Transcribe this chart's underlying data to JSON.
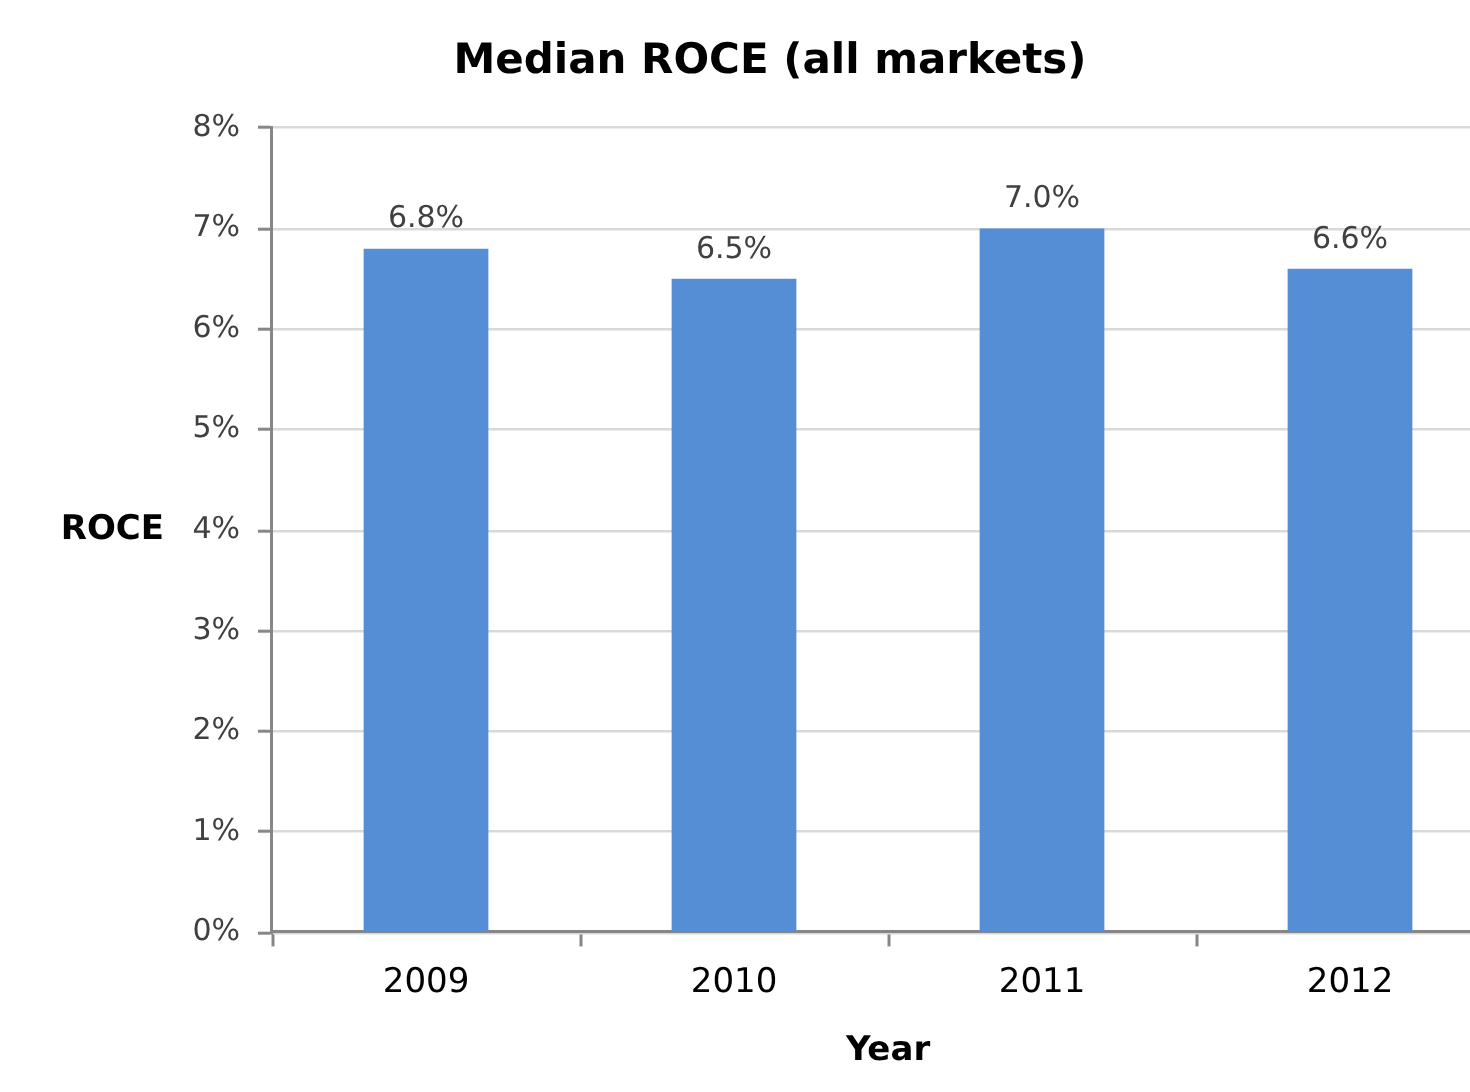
{
  "chart_data": {
    "type": "bar",
    "title": "Median ROCE (all markets)",
    "xlabel": "Year",
    "ylabel": "ROCE",
    "categories": [
      "2009",
      "2010",
      "2011",
      "2012"
    ],
    "values": [
      6.8,
      6.5,
      7.0,
      6.6
    ],
    "color": "#558ed5",
    "value_labels": [
      "6.8%",
      "6.5%",
      "7.0%",
      "6.6%"
    ],
    "ylim": [
      0,
      8
    ],
    "yticks": [
      {
        "value": 0,
        "label": "0%"
      },
      {
        "value": 1,
        "label": "1%"
      },
      {
        "value": 2,
        "label": "2%"
      },
      {
        "value": 3,
        "label": "3%"
      },
      {
        "value": 4,
        "label": "4%"
      },
      {
        "value": 5,
        "label": "5%"
      },
      {
        "value": 6,
        "label": "6%"
      },
      {
        "value": 7,
        "label": "7%"
      },
      {
        "value": 8,
        "label": "8%"
      }
    ],
    "grid": "y"
  }
}
